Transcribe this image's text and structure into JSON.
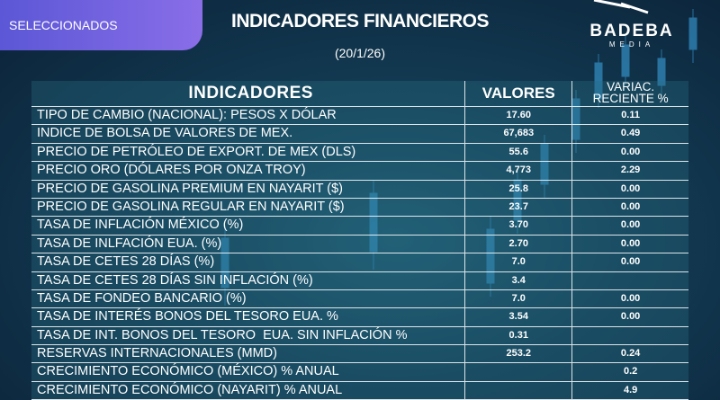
{
  "header": {
    "badge": "SELECCIONADOS",
    "title": "INDICADORES FINANCIEROS",
    "date": "(20/1/26)",
    "logo": {
      "name": "BADEBA",
      "sub": "MEDIA"
    }
  },
  "table": {
    "columns": {
      "indicator": "INDICADORES",
      "value": "VALORES",
      "change_1": "VARIAC.",
      "change_2": "RECIENTE %"
    },
    "rows": [
      [
        "TIPO DE CAMBIO (NACIONAL): PESOS X DÓLAR",
        "17.60",
        "0.11"
      ],
      [
        "INDICE DE BOLSA DE VALORES DE MEX.",
        "67,683",
        "0.49"
      ],
      [
        "PRECIO DE PETRÓLEO DE EXPORT. DE MEX (DLS)",
        "55.6",
        "0.00"
      ],
      [
        "PRECIO ORO (DÓLARES POR ONZA TROY)",
        "4,773",
        "2.29"
      ],
      [
        "PRECIO DE GASOLINA PREMIUM EN NAYARIT ($)",
        "25.8",
        "0.00"
      ],
      [
        "PRECIO DE GASOLINA REGULAR EN NAYARIT ($)",
        "23.7",
        "0.00"
      ],
      [
        "TASA DE INFLACIÓN MÉXICO (%)",
        "3.70",
        "0.00"
      ],
      [
        "TASA DE INLFACIÓN EUA. (%)",
        "2.70",
        "0.00"
      ],
      [
        "TASA DE CETES 28 DÍAS (%)",
        "7.0",
        "0.00"
      ],
      [
        "TASA DE CETES 28 DÍAS SIN INFLACIÓN (%)",
        "3.4",
        null
      ],
      [
        "TASA DE FONDEO BANCARIO (%)",
        "7.0",
        "0.00"
      ],
      [
        "TASA DE INTERÉS BONOS DEL TESORO EUA. %",
        "3.54",
        "0.00"
      ],
      [
        "TASA DE INT. BONOS DEL TESORO  EUA. SIN INFLACIÓN %",
        "0.31",
        null
      ],
      [
        "RESERVAS INTERNACIONALES (MMD)",
        "253.2",
        "0.24"
      ],
      [
        "CRECIMIENTO ECONÓMICO (MÉXICO) % ANUAL",
        null,
        "0.2"
      ],
      [
        "CRECIMIENTO ECONÓMICO (NAYARIT) % ANUAL",
        null,
        "4.9"
      ]
    ]
  }
}
